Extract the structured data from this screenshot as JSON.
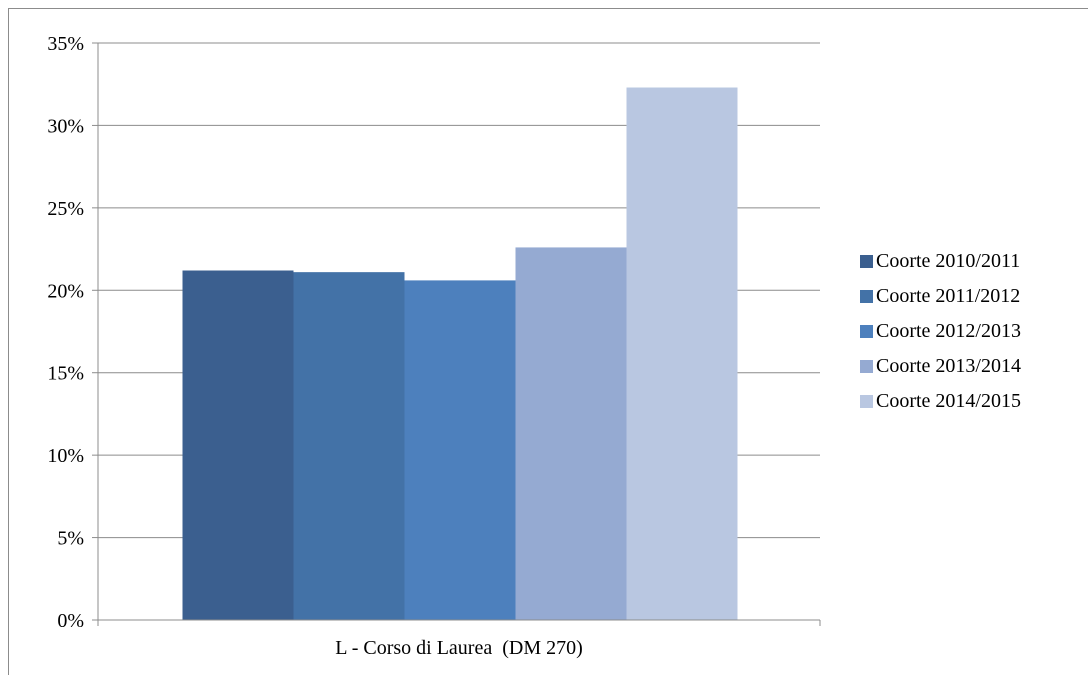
{
  "chart_data": {
    "type": "bar",
    "categories": [
      "L - Corso di Laurea  (DM 270)"
    ],
    "series": [
      {
        "name": "Coorte 2010/2011",
        "values": [
          0.212
        ],
        "color": "#3b5f8f"
      },
      {
        "name": "Coorte 2011/2012",
        "values": [
          0.211
        ],
        "color": "#4372a7"
      },
      {
        "name": "Coorte 2012/2013",
        "values": [
          0.206
        ],
        "color": "#4d80bd"
      },
      {
        "name": "Coorte 2013/2014",
        "values": [
          0.226
        ],
        "color": "#95aad2"
      },
      {
        "name": "Coorte 2014/2015",
        "values": [
          0.323
        ],
        "color": "#b9c7e1"
      }
    ],
    "yticks": [
      "0%",
      "5%",
      "10%",
      "15%",
      "20%",
      "25%",
      "30%",
      "35%"
    ],
    "ylim": [
      0,
      0.35
    ],
    "grid": true,
    "legend_position": "right"
  }
}
